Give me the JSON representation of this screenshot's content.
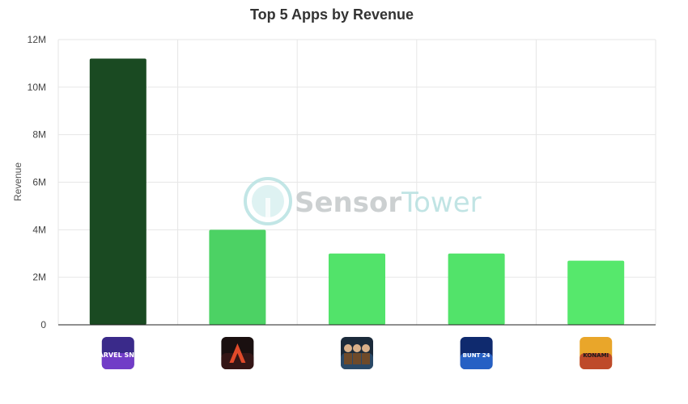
{
  "chart_data": {
    "type": "bar",
    "title": "Top 5 Apps by Revenue",
    "xlabel": "",
    "ylabel": "Revenue",
    "ylim": [
      0,
      12000000
    ],
    "yticks": [
      0,
      2000000,
      4000000,
      6000000,
      8000000,
      10000000,
      12000000
    ],
    "ytick_labels": [
      "0",
      "2M",
      "4M",
      "6M",
      "8M",
      "10M",
      "12M"
    ],
    "categories": [
      "MARVEL SNAP",
      "Magic: The Gathering Arena",
      "WWE Champions",
      "Super Mega Baseball / Bunt 24",
      "Yu-Gi-Oh! Duel Links"
    ],
    "values": [
      11200000,
      4000000,
      3000000,
      3000000,
      2700000
    ],
    "bar_colors": [
      "#1a4a22",
      "#4cd264",
      "#52e36a",
      "#52e36a",
      "#56e86c"
    ],
    "grid": true,
    "app_icons": [
      "marvel-snap-icon",
      "mtg-arena-icon",
      "wwe-champions-icon",
      "bunt-24-icon",
      "yu-gi-oh-duel-links-icon"
    ],
    "icon_texts": [
      "MARVEL SNAP",
      "",
      "",
      "BUNT 24",
      "KONAMI"
    ]
  },
  "watermark": {
    "brand_part1": "Sensor",
    "brand_part2": "Tower",
    "color1": "#c4c8ca",
    "color2": "#b7e0e0"
  }
}
